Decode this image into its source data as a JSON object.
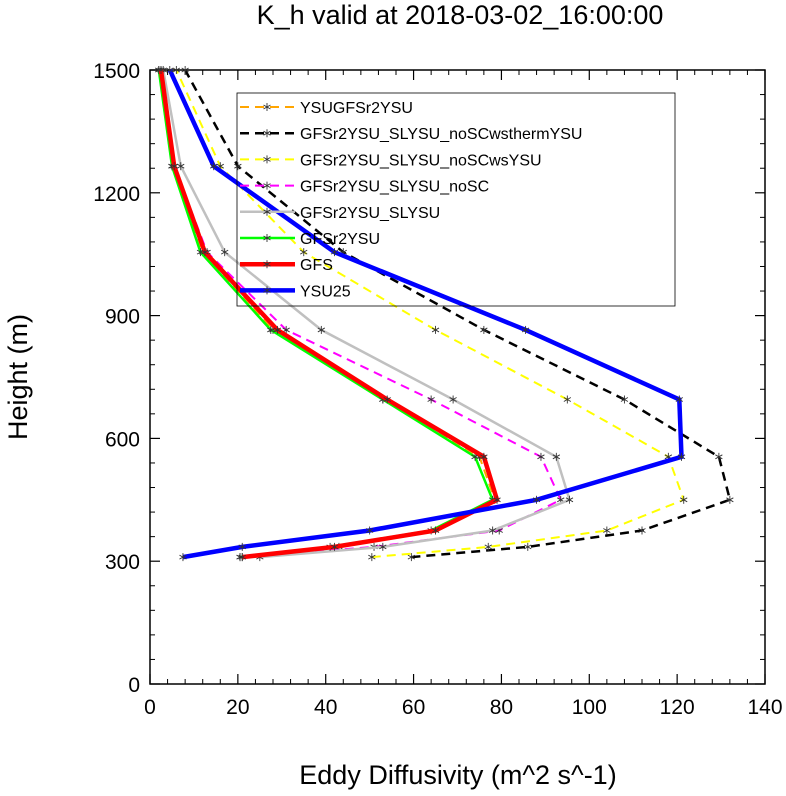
{
  "chart_data": {
    "type": "line",
    "title": "K_h valid at 2018-03-02_16:00:00",
    "xlabel": "Eddy Diffusivity (m^2 s^-1)",
    "ylabel": "Height (m)",
    "xlim": [
      0,
      140
    ],
    "ylim": [
      0,
      1500
    ],
    "xticks": [
      0,
      20,
      40,
      60,
      80,
      100,
      120,
      140
    ],
    "yticks": [
      0,
      300,
      600,
      900,
      1200,
      1500
    ],
    "legend_position": "upper-center",
    "grid": false,
    "marker": "asterisk",
    "heights": [
      310,
      335,
      375,
      450,
      555,
      695,
      865,
      1055,
      1265,
      1500
    ],
    "series": [
      {
        "name": "YSUGFSr2YSU",
        "color": "#ffa500",
        "dash": "dashed",
        "width": 2,
        "values": [
          21,
          43,
          65,
          78.5,
          75,
          53,
          28,
          12,
          5,
          2
        ]
      },
      {
        "name": "GFSr2YSU_SLYSU_noSCwsthermYSU",
        "color": "#000000",
        "dash": "dashed",
        "width": 2.5,
        "values": [
          59.5,
          86,
          112,
          132,
          129.5,
          108,
          76,
          44,
          20,
          8
        ]
      },
      {
        "name": "GFSr2YSU_SLYSU_noSCwsYSU",
        "color": "#ffff00",
        "dash": "dashed",
        "width": 2,
        "values": [
          50.5,
          77,
          104,
          121.5,
          118,
          95,
          65,
          35,
          16,
          6
        ]
      },
      {
        "name": "GFSr2YSU_SLYSU_noSC",
        "color": "#ff00ff",
        "dash": "dashed",
        "width": 2,
        "values": [
          20.5,
          51,
          79.5,
          93.5,
          89,
          64,
          31,
          13,
          5.5,
          2.5
        ]
      },
      {
        "name": "GFSr2YSU_SLYSU",
        "color": "#c0c0c0",
        "dash": "solid",
        "width": 2.5,
        "values": [
          25,
          53,
          78,
          95.5,
          92.5,
          69,
          39,
          17,
          7,
          3
        ]
      },
      {
        "name": "GFSr2YSU",
        "color": "#00ff00",
        "dash": "solid",
        "width": 2.5,
        "values": [
          20.5,
          41,
          64,
          78,
          74,
          53,
          27.5,
          11.5,
          5,
          2
        ]
      },
      {
        "name": "GFS",
        "color": "#ff0000",
        "dash": "solid",
        "width": 4.5,
        "values": [
          21,
          42,
          65,
          79,
          76,
          54,
          29,
          12.5,
          5.5,
          2.5
        ]
      },
      {
        "name": "YSU25",
        "color": "#0000ff",
        "dash": "solid",
        "width": 4.5,
        "values": [
          7.5,
          21,
          50,
          88,
          121,
          120.5,
          85.5,
          42,
          14.5,
          4.5
        ]
      }
    ]
  }
}
